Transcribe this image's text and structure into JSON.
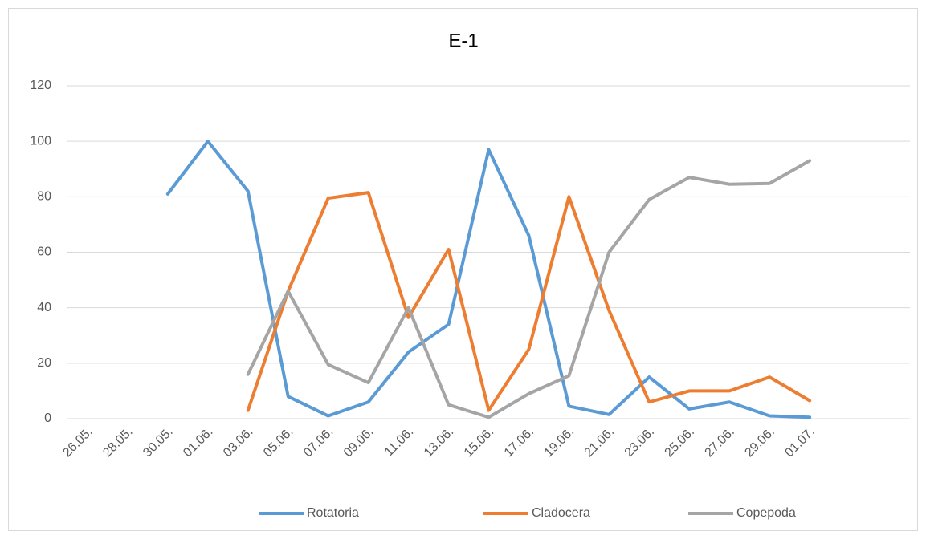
{
  "chart_data": {
    "type": "line",
    "title": "E-1",
    "categories": [
      "26.05.",
      "28.05.",
      "30.05.",
      "01.06.",
      "03.06.",
      "05.06.",
      "07.06.",
      "09.06.",
      "11.06.",
      "13.06.",
      "15.06.",
      "17.06.",
      "19.06.",
      "21.06.",
      "23.06.",
      "25.06.",
      "27.06.",
      "29.06.",
      "01.07.",
      null,
      null
    ],
    "series": [
      {
        "name": "Rotatoria",
        "color": "#5b9bd5",
        "values": [
          null,
          null,
          81,
          100,
          82,
          8,
          1,
          6,
          24,
          34,
          97,
          66,
          4.5,
          1.5,
          15,
          3.5,
          6,
          1,
          0.5,
          null,
          null
        ]
      },
      {
        "name": "Cladocera",
        "color": "#ed7d31",
        "values": [
          null,
          null,
          null,
          null,
          3,
          46,
          79.5,
          81.5,
          36.5,
          61,
          3,
          25,
          80,
          39,
          6,
          10,
          10,
          15,
          6.5,
          null,
          null
        ]
      },
      {
        "name": "Copepoda",
        "color": "#a5a5a5",
        "values": [
          null,
          null,
          null,
          null,
          16,
          46,
          19.5,
          13,
          40,
          5,
          0.5,
          9,
          15.5,
          60,
          79,
          87,
          84.5,
          84.8,
          93,
          null,
          null
        ]
      }
    ],
    "ylim": [
      0,
      120
    ],
    "yticks": [
      0,
      20,
      40,
      60,
      80,
      100,
      120
    ],
    "grid": true,
    "legend": "bottom"
  }
}
